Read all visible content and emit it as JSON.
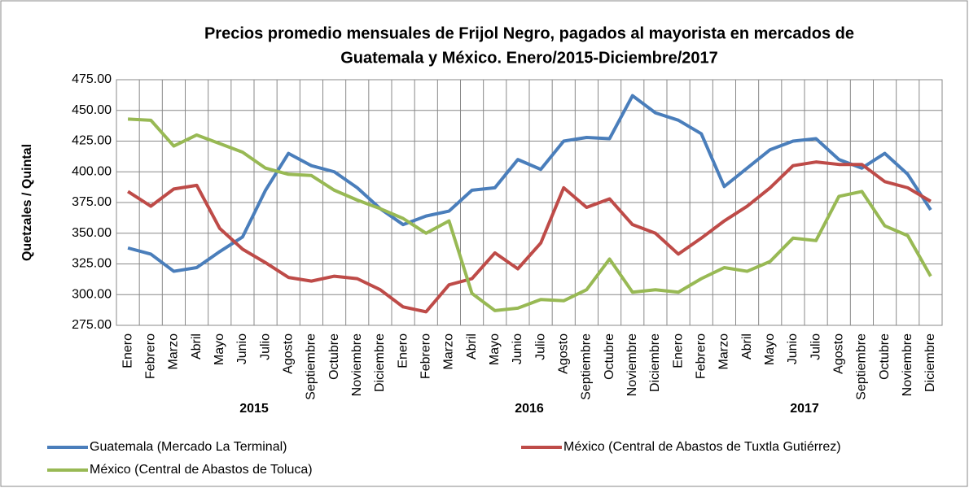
{
  "chart_data": {
    "type": "line",
    "title": [
      "Precios promedio mensuales de Frijol Negro, pagados al mayorista en mercados de",
      "Guatemala y México. Enero/2015-Diciembre/2017"
    ],
    "y_label": "Quetzales / Quintal",
    "categories": [
      "Enero",
      "Febrero",
      "Marzo",
      "Abril",
      "Mayo",
      "Junio",
      "Julio",
      "Agosto",
      "Septiembre",
      "Octubre",
      "Noviembre",
      "Diciembre",
      "Enero",
      "Febrero",
      "Marzo",
      "Abril",
      "Mayo",
      "Junio",
      "Julio",
      "Agosto",
      "Septiembre",
      "Octubre",
      "Noviembre",
      "Diciembre",
      "Enero",
      "Febrero",
      "Marzo",
      "Abril",
      "Mayo",
      "Junio",
      "Julio",
      "Agosto",
      "Septiembre",
      "Octubre",
      "Noviembre",
      "Diciembre"
    ],
    "groups": [
      "2015",
      "2016",
      "2017"
    ],
    "series": [
      {
        "name": "Guatemala (Mercado La Terminal)",
        "color": "#4a7ebb",
        "values": [
          338,
          333,
          319,
          322,
          335,
          347,
          385,
          415,
          405,
          400,
          387,
          370,
          357,
          364,
          368,
          385,
          387,
          410,
          402,
          425,
          428,
          427,
          462,
          448,
          442,
          431,
          388,
          403,
          418,
          425,
          427,
          410,
          403,
          415,
          398,
          369
        ]
      },
      {
        "name": "México (Central de Abastos de Tuxtla Gutiérrez)",
        "color": "#be4b48",
        "values": [
          384,
          372,
          386,
          389,
          354,
          337,
          326,
          314,
          311,
          315,
          313,
          304,
          290,
          286,
          308,
          313,
          334,
          321,
          342,
          387,
          371,
          378,
          357,
          350,
          333,
          346,
          360,
          372,
          387,
          405,
          408,
          406,
          406,
          392,
          387,
          376
        ]
      },
      {
        "name": "México (Central de Abastos de Toluca)",
        "color": "#98b954",
        "values": [
          443,
          442,
          421,
          430,
          423,
          416,
          403,
          398,
          397,
          385,
          377,
          370,
          362,
          350,
          360,
          301,
          287,
          289,
          296,
          295,
          304,
          329,
          302,
          304,
          302,
          313,
          322,
          319,
          327,
          346,
          344,
          380,
          384,
          356,
          348,
          315
        ]
      }
    ],
    "ylim": [
      275,
      475
    ],
    "yticks": [
      {
        "value": 275,
        "label": "275.00"
      },
      {
        "value": 300,
        "label": "300.00"
      },
      {
        "value": 325,
        "label": "325.00"
      },
      {
        "value": 350,
        "label": "350.00"
      },
      {
        "value": 375,
        "label": "375.00"
      },
      {
        "value": 400,
        "label": "400.00"
      },
      {
        "value": 425,
        "label": "425.00"
      },
      {
        "value": 450,
        "label": "450.00"
      },
      {
        "value": 475,
        "label": "475.00"
      }
    ],
    "grid": true,
    "legend": "bottom"
  }
}
